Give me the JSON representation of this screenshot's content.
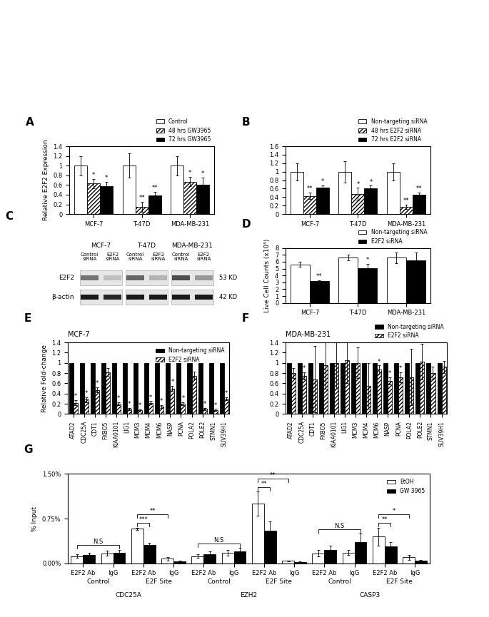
{
  "chart_data": [
    {
      "panel": "A",
      "type": "bar",
      "ylabel": "Relative E2F2 Expression",
      "categories": [
        "MCF-7",
        "T-47D",
        "MDA-MB-231"
      ],
      "ylim": [
        0,
        1.4
      ],
      "yticks": [
        0,
        0.2,
        0.4,
        0.6,
        0.8,
        1,
        1.2,
        1.4
      ],
      "legend": "above",
      "series": [
        {
          "name": "Control",
          "color": "#ffffff",
          "values": [
            1,
            1,
            1
          ],
          "errors": [
            0.2,
            0.25,
            0.2
          ],
          "significance": [
            null,
            null,
            null
          ]
        },
        {
          "name": "48 hrs GW3965",
          "color": "#ffffff",
          "values": [
            0.63,
            0.15,
            0.67
          ],
          "errors": [
            0.1,
            0.1,
            0.1
          ],
          "significance": [
            "*",
            "**",
            "*"
          ]
        },
        {
          "name": "72 hrs GW3965",
          "color": "#000000",
          "values": [
            0.57,
            0.39,
            0.6
          ],
          "errors": [
            0.1,
            0.07,
            0.15
          ],
          "significance": [
            "*",
            "**",
            "*"
          ]
        }
      ]
    },
    {
      "panel": "B",
      "type": "bar",
      "categories": [
        "MCF-7",
        "T-47D",
        "MDA-MB-231"
      ],
      "ylim": [
        0,
        1.6
      ],
      "yticks": [
        0,
        0.2,
        0.4,
        0.6,
        0.8,
        1,
        1.2,
        1.4,
        1.6
      ],
      "legend": "above",
      "series": [
        {
          "name": "Non-targeting siRNA",
          "color": "#ffffff",
          "values": [
            1,
            1,
            1
          ],
          "errors": [
            0.2,
            0.25,
            0.2
          ],
          "significance": [
            null,
            null,
            null
          ]
        },
        {
          "name": "48 hrs E2F2 siRNA",
          "color": "#ffffff",
          "values": [
            0.43,
            0.47,
            0.17
          ],
          "errors": [
            0.08,
            0.15,
            0.05
          ],
          "significance": [
            "**",
            "*",
            "**"
          ]
        },
        {
          "name": "72 hrs E2F2 siRNA",
          "color": "#000000",
          "values": [
            0.63,
            0.6,
            0.46
          ],
          "errors": [
            0.05,
            0.07,
            0.05
          ],
          "significance": [
            "*",
            "*",
            "**"
          ]
        }
      ]
    },
    {
      "panel": "C",
      "type": "blot",
      "groups": [
        "MCF-7",
        "T-47D",
        "MDA-MB-231"
      ],
      "lanes": [
        "Control siRNA",
        "E2F2 siRNA"
      ],
      "rows": [
        {
          "name": "E2F2",
          "size": "53 KD",
          "intensities": [
            [
              0.55,
              0.25
            ],
            [
              0.6,
              0.3
            ],
            [
              0.7,
              0.4
            ]
          ]
        },
        {
          "name": "β-actin",
          "size": "42 KD",
          "intensities": [
            [
              0.9,
              0.85
            ],
            [
              0.9,
              0.9
            ],
            [
              0.9,
              0.9
            ]
          ]
        }
      ]
    },
    {
      "panel": "D",
      "type": "bar",
      "ylabel": "Live Cell Counts (x10⁵)",
      "categories": [
        "MCF-7",
        "T-47D",
        "MDA-MB-231"
      ],
      "ylim": [
        0,
        8
      ],
      "yticks": [
        0,
        1,
        2,
        3,
        4,
        5,
        6,
        7,
        8
      ],
      "legend": "above",
      "series": [
        {
          "name": "Non-targeting siRNA",
          "color": "#ffffff",
          "values": [
            5.6,
            6.6,
            6.6
          ],
          "errors": [
            0.35,
            0.4,
            0.8
          ],
          "significance": [
            null,
            null,
            null
          ]
        },
        {
          "name": "E2F2 siRNA",
          "color": "#000000",
          "values": [
            3.2,
            5.1,
            6.2
          ],
          "errors": [
            0.1,
            0.6,
            1.1
          ],
          "significance": [
            "**",
            "*",
            null
          ]
        }
      ]
    },
    {
      "panel": "E",
      "type": "bar",
      "title": "MCF-7",
      "ylabel": "Relative Fold-change",
      "categories": [
        "ATAD2",
        "CDC25A",
        "CDT1",
        "FXBO5",
        "KIAA0101",
        "LIG1",
        "MCM3",
        "MCM4",
        "MCM6",
        "NASP",
        "PCNA",
        "POLA2",
        "POLE2",
        "STMN1",
        "SUV39H1"
      ],
      "ylim": [
        0,
        1.4
      ],
      "yticks": [
        0,
        0.2,
        0.4,
        0.6,
        0.8,
        1,
        1.2,
        1.4
      ],
      "legend": "upper right",
      "series": [
        {
          "name": "Non-targeting siRNA",
          "color": "#000000",
          "values": [
            1,
            1,
            1,
            1,
            1,
            1,
            1,
            1,
            1,
            1,
            1,
            1,
            1,
            1,
            1
          ]
        },
        {
          "name": "E2F2 siRNA",
          "color": "#ffffff",
          "values": [
            0.22,
            0.28,
            0.47,
            0.82,
            0.2,
            0.1,
            0.07,
            0.22,
            0.15,
            0.5,
            0.2,
            0.75,
            0.1,
            0.08,
            0.3
          ],
          "errors": [
            0.05,
            0.05,
            0.05,
            0.08,
            0.03,
            0.02,
            0.02,
            0.03,
            0.03,
            0.05,
            0.03,
            0.08,
            0.02,
            0.02,
            0.03
          ],
          "significance": [
            "*",
            "*",
            "*",
            null,
            "*",
            "*",
            "*",
            "*",
            "*",
            "*",
            "*",
            null,
            "*",
            "*",
            "*"
          ]
        }
      ]
    },
    {
      "panel": "F",
      "type": "bar",
      "title": "MDA-MB-231",
      "categories": [
        "ATAD2",
        "CDC25A",
        "CDT1",
        "FXBO5",
        "KIAA0101",
        "LIG1",
        "MCM3",
        "MCM4",
        "MCM6",
        "NASP",
        "PCNA",
        "POLA2",
        "POLE2",
        "STMN1",
        "SUV39H1"
      ],
      "ylim": [
        0,
        1.4
      ],
      "yticks": [
        0,
        0.2,
        0.4,
        0.6,
        0.8,
        1,
        1.2,
        1.4
      ],
      "legend": "above",
      "series": [
        {
          "name": "Non-targeting siRNA",
          "color": "#000000",
          "values": [
            1,
            1,
            1,
            1,
            1,
            1,
            1,
            1,
            1,
            1,
            1,
            1,
            1,
            1,
            1
          ]
        },
        {
          "name": "E2F2 siRNA",
          "color": "#ffffff",
          "values": [
            0.8,
            0.75,
            0.68,
            0.95,
            1.0,
            1.05,
            1.0,
            0.55,
            0.87,
            0.65,
            0.72,
            0.72,
            1.02,
            0.8,
            0.92
          ],
          "errors": [
            0.1,
            0.07,
            0.65,
            0.45,
            0.5,
            0.45,
            0.3,
            0.45,
            0.08,
            0.07,
            0.1,
            0.55,
            0.35,
            0.12,
            0.12
          ],
          "significance": [
            null,
            "*",
            null,
            null,
            null,
            null,
            null,
            null,
            "*",
            "*",
            "*",
            null,
            null,
            null,
            null
          ]
        }
      ]
    },
    {
      "panel": "G",
      "type": "bar",
      "ylabel": "% Input",
      "categories": [
        "E2F2 Ab",
        "IgG",
        "E2F2 Ab",
        "IgG",
        "E2F2 Ab",
        "IgG",
        "E2F2 Ab",
        "IgG",
        "E2F2 Ab",
        "IgG",
        "E2F2 Ab",
        "IgG"
      ],
      "groups_level2": [
        "Control",
        "E2F Site",
        "Control",
        "E2F Site",
        "Control",
        "E2F Site"
      ],
      "groups_level3": [
        "CDC25A",
        "EZH2",
        "CASP3"
      ],
      "ylim": [
        0,
        1.5
      ],
      "yticks": [
        {
          "value": 0,
          "label": "0.00%"
        },
        {
          "value": 0.75,
          "label": "0.75%"
        },
        {
          "value": 1.5,
          "label": "1.50%"
        }
      ],
      "legend": "upper right",
      "series": [
        {
          "name": "EtOH",
          "color": "#ffffff",
          "values": [
            0.12,
            0.17,
            0.58,
            0.08,
            0.12,
            0.18,
            1.0,
            0.04,
            0.17,
            0.18,
            0.45,
            0.1
          ],
          "errors": [
            0.03,
            0.04,
            0.02,
            0.03,
            0.03,
            0.05,
            0.2,
            0.01,
            0.05,
            0.04,
            0.15,
            0.04
          ]
        },
        {
          "name": "GW 3965",
          "color": "#000000",
          "values": [
            0.14,
            0.18,
            0.31,
            0.03,
            0.15,
            0.2,
            0.55,
            0.02,
            0.22,
            0.35,
            0.28,
            0.05
          ],
          "errors": [
            0.04,
            0.05,
            0.03,
            0.02,
            0.05,
            0.06,
            0.15,
            0.01,
            0.08,
            0.15,
            0.08,
            0.01
          ]
        }
      ],
      "comparisons": [
        {
          "label": "N.S",
          "from": [
            0,
            0
          ],
          "to": [
            1,
            1
          ]
        },
        {
          "label": "***",
          "from": [
            2,
            0
          ],
          "to": [
            2,
            1
          ]
        },
        {
          "label": "**",
          "from": [
            2,
            0
          ],
          "to": [
            3,
            0
          ]
        },
        {
          "label": "N.S",
          "from": [
            4,
            0
          ],
          "to": [
            5,
            1
          ]
        },
        {
          "label": "**",
          "from": [
            6,
            0
          ],
          "to": [
            6,
            1
          ]
        },
        {
          "label": "**",
          "from": [
            6,
            0
          ],
          "to": [
            7,
            0
          ]
        },
        {
          "label": "N.S",
          "from": [
            8,
            0
          ],
          "to": [
            9,
            1
          ]
        },
        {
          "label": "**",
          "from": [
            10,
            0
          ],
          "to": [
            10,
            1
          ]
        },
        {
          "label": "*",
          "from": [
            10,
            0
          ],
          "to": [
            11,
            0
          ]
        }
      ]
    }
  ]
}
